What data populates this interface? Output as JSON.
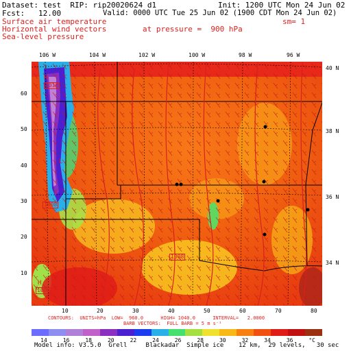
{
  "header": {
    "dataset": "Dataset: test  RIP: rip20020624 d1",
    "init": "Init: 1200 UTC Mon 24 Jun 02",
    "fcst": "Fcst:   12.00",
    "valid": "Valid: 0000 UTC Tue 25 Jun 02 (1900 CDT Mon 24 Jun 02)",
    "field1": "Surface air temperature",
    "field2": "Horizontal wind vectors",
    "field3": "Sea-level pressure",
    "pressure": "at pressure =  900 hPa",
    "sm": "sm= 1"
  },
  "map": {
    "lon_labels": [
      "106 W",
      "104 W",
      "102 W",
      "100 W",
      "98 W",
      "96 W"
    ],
    "lat_labels_right": [
      "40 N",
      "38 N",
      "36 N",
      "34 N"
    ],
    "y_grid_labels": [
      "60",
      "50",
      "40",
      "30",
      "20",
      "10"
    ],
    "x_grid_labels": [
      "10",
      "20",
      "30",
      "40",
      "50",
      "60",
      "70",
      "80"
    ],
    "pressure_labels": [
      "1010",
      "1008",
      "1008",
      "1008"
    ],
    "high_labels": [
      "H",
      "H"
    ],
    "low_labels": [
      "L"
    ]
  },
  "footer": {
    "contours": "CONTOURS:  UNITS=hPa  LOW=  960.0      HIGH= 1040.0      INTERVAL=   2.0000",
    "barbs": "BARB VECTORS:  FULL BARB = 5 m s⁻¹",
    "model_info": "Model info: V3.5.0  Grell     Blackadar  Simple ice    12 km,  29 levels,   30 sec"
  },
  "colorbar": {
    "labels": [
      "14",
      "16",
      "18",
      "20",
      "22",
      "24",
      "26",
      "28",
      "30",
      "32",
      "34",
      "36",
      "°C"
    ],
    "colors": [
      "#6c6cff",
      "#8e8ef0",
      "#b07fd8",
      "#c060c8",
      "#8a2fc0",
      "#4a20d0",
      "#1c3cf0",
      "#2ab0e8",
      "#46e070",
      "#a6e040",
      "#f0e030",
      "#f8b818",
      "#f88010",
      "#f05010",
      "#e01c18",
      "#c01010",
      "#9a3010"
    ]
  }
}
